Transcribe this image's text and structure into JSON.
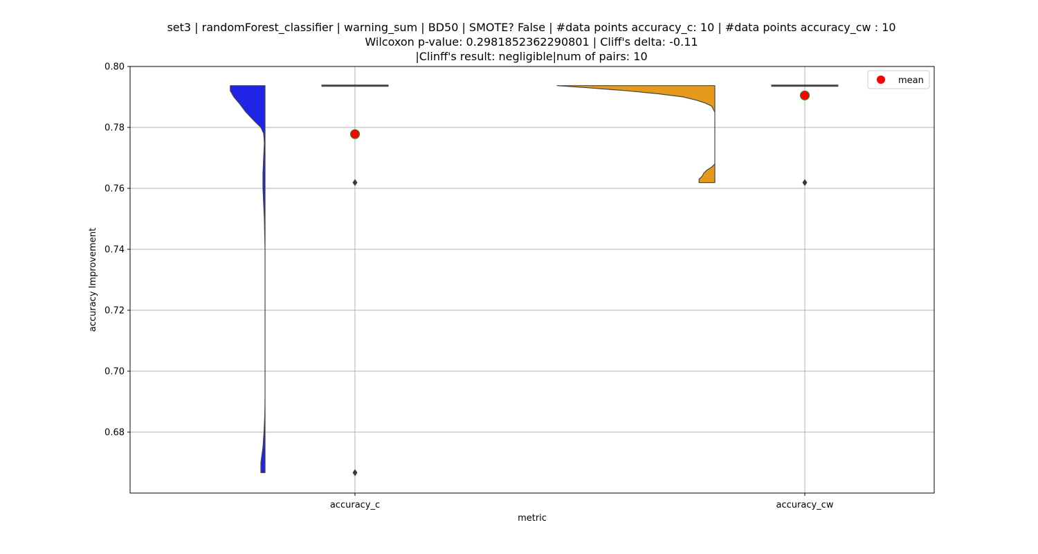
{
  "chart_data": {
    "type": "violin_box",
    "title_lines": [
      "set3 | randomForest_classifier | warning_sum | BD50 | SMOTE? False | #data points accuracy_c: 10 | #data points accuracy_cw : 10",
      "Wilcoxon p-value: 0.2981852362290801 | Cliff's delta: -0.11",
      "|Clinff's result: negligible|num of pairs: 10"
    ],
    "xlabel": "metric",
    "ylabel": "accuracy Improvement",
    "categories": [
      "accuracy_c",
      "accuracy_cw"
    ],
    "ylim": [
      0.66,
      0.8
    ],
    "yticks": [
      0.68,
      0.7,
      0.72,
      0.74,
      0.76,
      0.78,
      0.8
    ],
    "grid": true,
    "legend": {
      "position": "top-right",
      "entries": [
        {
          "label": "mean",
          "color": "#ff0000"
        }
      ]
    },
    "series": [
      {
        "category": "accuracy_c",
        "color": "#1f24e6",
        "violin_range": [
          0.6667,
          0.7937
        ],
        "median": 0.7937,
        "q1": 0.7937,
        "q3": 0.7937,
        "whisker_low": 0.7937,
        "whisker_high": 0.7937,
        "outliers": [
          0.7619,
          0.6667
        ],
        "mean": 0.7778,
        "density": [
          [
            0.7937,
            1.0
          ],
          [
            0.792,
            1.0
          ],
          [
            0.79,
            0.9
          ],
          [
            0.788,
            0.75
          ],
          [
            0.785,
            0.55
          ],
          [
            0.782,
            0.3
          ],
          [
            0.78,
            0.12
          ],
          [
            0.778,
            0.04
          ],
          [
            0.775,
            0.02
          ],
          [
            0.77,
            0.04
          ],
          [
            0.765,
            0.06
          ],
          [
            0.76,
            0.06
          ],
          [
            0.755,
            0.04
          ],
          [
            0.75,
            0.02
          ],
          [
            0.745,
            0.01
          ],
          [
            0.74,
            0.0
          ],
          [
            0.72,
            0.0
          ],
          [
            0.7,
            0.0
          ],
          [
            0.69,
            0.0
          ],
          [
            0.685,
            0.01
          ],
          [
            0.68,
            0.03
          ],
          [
            0.675,
            0.06
          ],
          [
            0.67,
            0.12
          ],
          [
            0.6667,
            0.12
          ]
        ]
      },
      {
        "category": "accuracy_cw",
        "color": "#e69a1c",
        "violin_range": [
          0.7619,
          0.7937
        ],
        "median": 0.7937,
        "q1": 0.7937,
        "q3": 0.7937,
        "whisker_low": 0.7937,
        "whisker_high": 0.7937,
        "outliers": [
          0.7619
        ],
        "mean": 0.7905,
        "density": [
          [
            0.7937,
            1.0
          ],
          [
            0.793,
            0.8
          ],
          [
            0.792,
            0.55
          ],
          [
            0.791,
            0.35
          ],
          [
            0.79,
            0.2
          ],
          [
            0.789,
            0.12
          ],
          [
            0.788,
            0.06
          ],
          [
            0.787,
            0.02
          ],
          [
            0.785,
            0.0
          ],
          [
            0.77,
            0.0
          ],
          [
            0.768,
            0.0
          ],
          [
            0.767,
            0.02
          ],
          [
            0.766,
            0.05
          ],
          [
            0.765,
            0.07
          ],
          [
            0.764,
            0.08
          ],
          [
            0.763,
            0.1
          ],
          [
            0.7619,
            0.1
          ]
        ]
      }
    ]
  }
}
